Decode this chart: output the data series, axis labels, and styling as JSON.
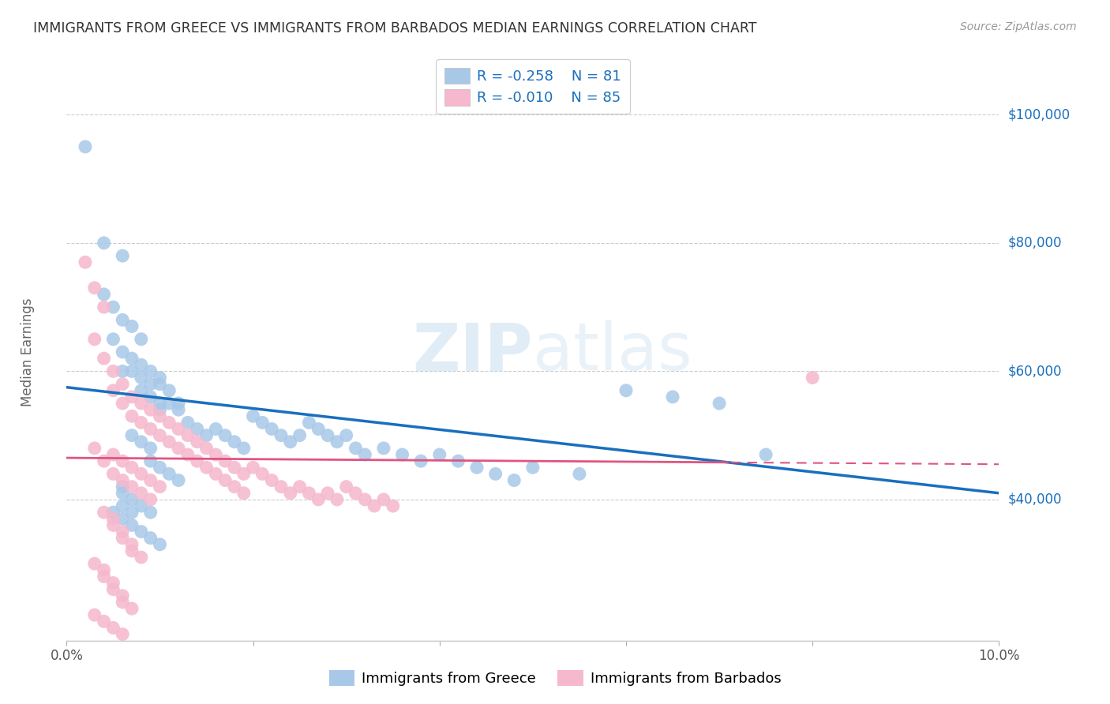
{
  "title": "IMMIGRANTS FROM GREECE VS IMMIGRANTS FROM BARBADOS MEDIAN EARNINGS CORRELATION CHART",
  "source": "Source: ZipAtlas.com",
  "ylabel": "Median Earnings",
  "xlim": [
    0.0,
    0.1
  ],
  "ylim": [
    18000,
    108000
  ],
  "xticks": [
    0.0,
    0.02,
    0.04,
    0.06,
    0.08,
    0.1
  ],
  "ytick_vals": [
    40000,
    60000,
    80000,
    100000
  ],
  "ytick_labels": [
    "$40,000",
    "$60,000",
    "$80,000",
    "$100,000"
  ],
  "greece_color": "#a8c8e8",
  "barbados_color": "#f5b8cc",
  "greece_line_color": "#1a6fbd",
  "barbados_line_color": "#e05580",
  "greece_R": -0.258,
  "greece_N": 81,
  "barbados_R": -0.01,
  "barbados_N": 85,
  "watermark": "ZIPatlas",
  "background_color": "#ffffff",
  "grid_color": "#cccccc",
  "title_color": "#333333",
  "right_tick_color": "#1a6fbd",
  "greece_scatter_x": [
    0.002,
    0.004,
    0.006,
    0.004,
    0.005,
    0.005,
    0.006,
    0.007,
    0.008,
    0.006,
    0.007,
    0.008,
    0.006,
    0.007,
    0.008,
    0.009,
    0.01,
    0.009,
    0.008,
    0.01,
    0.011,
    0.009,
    0.01,
    0.011,
    0.01,
    0.012,
    0.012,
    0.013,
    0.014,
    0.015,
    0.016,
    0.017,
    0.018,
    0.019,
    0.02,
    0.021,
    0.022,
    0.023,
    0.024,
    0.025,
    0.026,
    0.027,
    0.028,
    0.029,
    0.03,
    0.031,
    0.032,
    0.034,
    0.036,
    0.038,
    0.04,
    0.042,
    0.044,
    0.046,
    0.048,
    0.05,
    0.055,
    0.06,
    0.065,
    0.07,
    0.075,
    0.007,
    0.008,
    0.009,
    0.009,
    0.01,
    0.011,
    0.012,
    0.005,
    0.006,
    0.007,
    0.008,
    0.009,
    0.01,
    0.006,
    0.007,
    0.006,
    0.006,
    0.007,
    0.008,
    0.009
  ],
  "greece_scatter_y": [
    95000,
    80000,
    78000,
    72000,
    70000,
    65000,
    68000,
    67000,
    65000,
    63000,
    62000,
    61000,
    60000,
    60000,
    59000,
    60000,
    59000,
    58000,
    57000,
    58000,
    57000,
    56000,
    55000,
    55000,
    54000,
    55000,
    54000,
    52000,
    51000,
    50000,
    51000,
    50000,
    49000,
    48000,
    53000,
    52000,
    51000,
    50000,
    49000,
    50000,
    52000,
    51000,
    50000,
    49000,
    50000,
    48000,
    47000,
    48000,
    47000,
    46000,
    47000,
    46000,
    45000,
    44000,
    43000,
    45000,
    44000,
    57000,
    56000,
    55000,
    47000,
    50000,
    49000,
    48000,
    46000,
    45000,
    44000,
    43000,
    38000,
    37000,
    36000,
    35000,
    34000,
    33000,
    39000,
    38000,
    42000,
    41000,
    40000,
    39000,
    38000
  ],
  "barbados_scatter_x": [
    0.002,
    0.003,
    0.004,
    0.003,
    0.004,
    0.005,
    0.005,
    0.006,
    0.006,
    0.007,
    0.007,
    0.008,
    0.008,
    0.009,
    0.009,
    0.01,
    0.01,
    0.011,
    0.011,
    0.012,
    0.012,
    0.013,
    0.013,
    0.014,
    0.014,
    0.015,
    0.015,
    0.016,
    0.016,
    0.017,
    0.017,
    0.018,
    0.018,
    0.019,
    0.019,
    0.02,
    0.021,
    0.022,
    0.023,
    0.024,
    0.025,
    0.026,
    0.027,
    0.028,
    0.029,
    0.03,
    0.031,
    0.032,
    0.033,
    0.034,
    0.035,
    0.003,
    0.004,
    0.005,
    0.005,
    0.006,
    0.006,
    0.007,
    0.007,
    0.008,
    0.008,
    0.009,
    0.009,
    0.01,
    0.004,
    0.005,
    0.005,
    0.006,
    0.006,
    0.007,
    0.007,
    0.008,
    0.003,
    0.004,
    0.004,
    0.005,
    0.005,
    0.006,
    0.006,
    0.007,
    0.08,
    0.003,
    0.004,
    0.005,
    0.006
  ],
  "barbados_scatter_y": [
    77000,
    73000,
    70000,
    65000,
    62000,
    60000,
    57000,
    58000,
    55000,
    56000,
    53000,
    55000,
    52000,
    54000,
    51000,
    53000,
    50000,
    52000,
    49000,
    51000,
    48000,
    50000,
    47000,
    49000,
    46000,
    48000,
    45000,
    47000,
    44000,
    46000,
    43000,
    45000,
    42000,
    44000,
    41000,
    45000,
    44000,
    43000,
    42000,
    41000,
    42000,
    41000,
    40000,
    41000,
    40000,
    42000,
    41000,
    40000,
    39000,
    40000,
    39000,
    48000,
    46000,
    47000,
    44000,
    46000,
    43000,
    45000,
    42000,
    44000,
    41000,
    43000,
    40000,
    42000,
    38000,
    37000,
    36000,
    35000,
    34000,
    33000,
    32000,
    31000,
    30000,
    29000,
    28000,
    27000,
    26000,
    25000,
    24000,
    23000,
    59000,
    22000,
    21000,
    20000,
    19000
  ]
}
